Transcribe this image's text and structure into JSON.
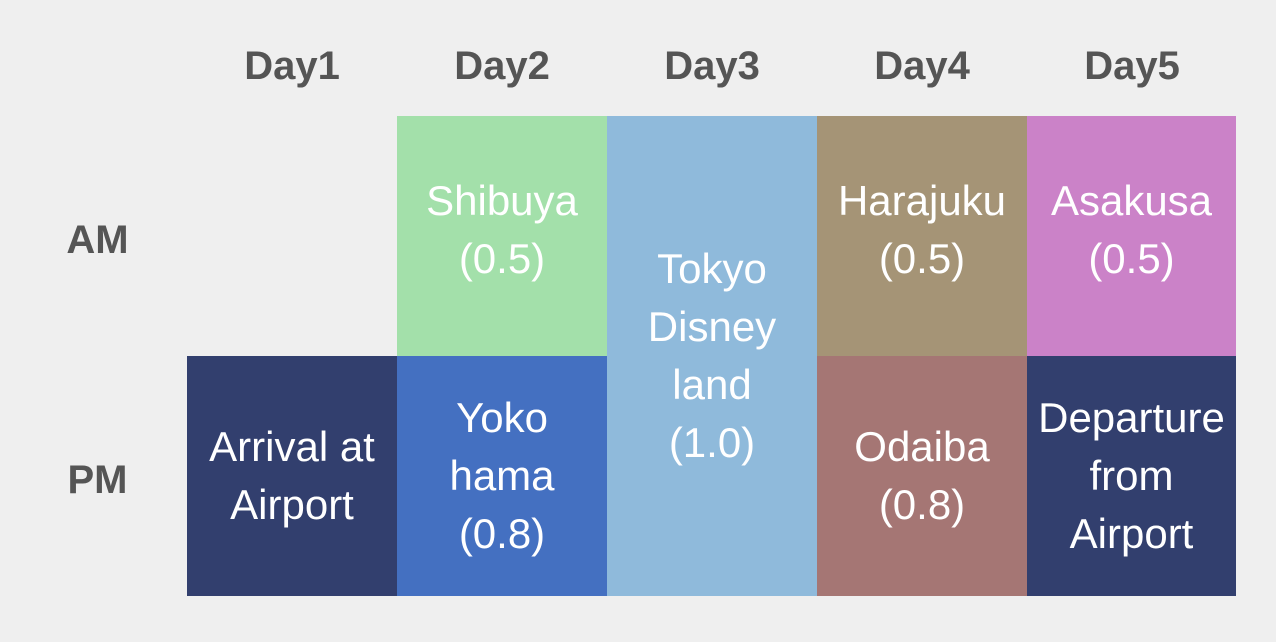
{
  "days": [
    "Day1",
    "Day2",
    "Day3",
    "Day4",
    "Day5"
  ],
  "rows": [
    "AM",
    "PM"
  ],
  "cells": [
    {
      "day": "Day2",
      "slot": "AM",
      "text": "Shibuya\n(0.5)",
      "color": "#a3e0aa"
    },
    {
      "day": "Day3",
      "slot": "AM-PM",
      "text": "Tokyo\nDisney\nland\n(1.0)",
      "color": "#8fbadb"
    },
    {
      "day": "Day4",
      "slot": "AM",
      "text": "Harajuku\n(0.5)",
      "color": "#a59476"
    },
    {
      "day": "Day5",
      "slot": "AM",
      "text": "Asakusa\n(0.5)",
      "color": "#cb82c8"
    },
    {
      "day": "Day1",
      "slot": "PM",
      "text": "Arrival at\nAirport",
      "color": "#323f6e"
    },
    {
      "day": "Day2",
      "slot": "PM",
      "text": "Yoko\nhama\n(0.8)",
      "color": "#4470c1"
    },
    {
      "day": "Day4",
      "slot": "PM",
      "text": "Odaiba\n(0.8)",
      "color": "#a57674"
    },
    {
      "day": "Day5",
      "slot": "PM",
      "text": "Departure\nfrom\nAirport",
      "color": "#323f6e"
    }
  ]
}
